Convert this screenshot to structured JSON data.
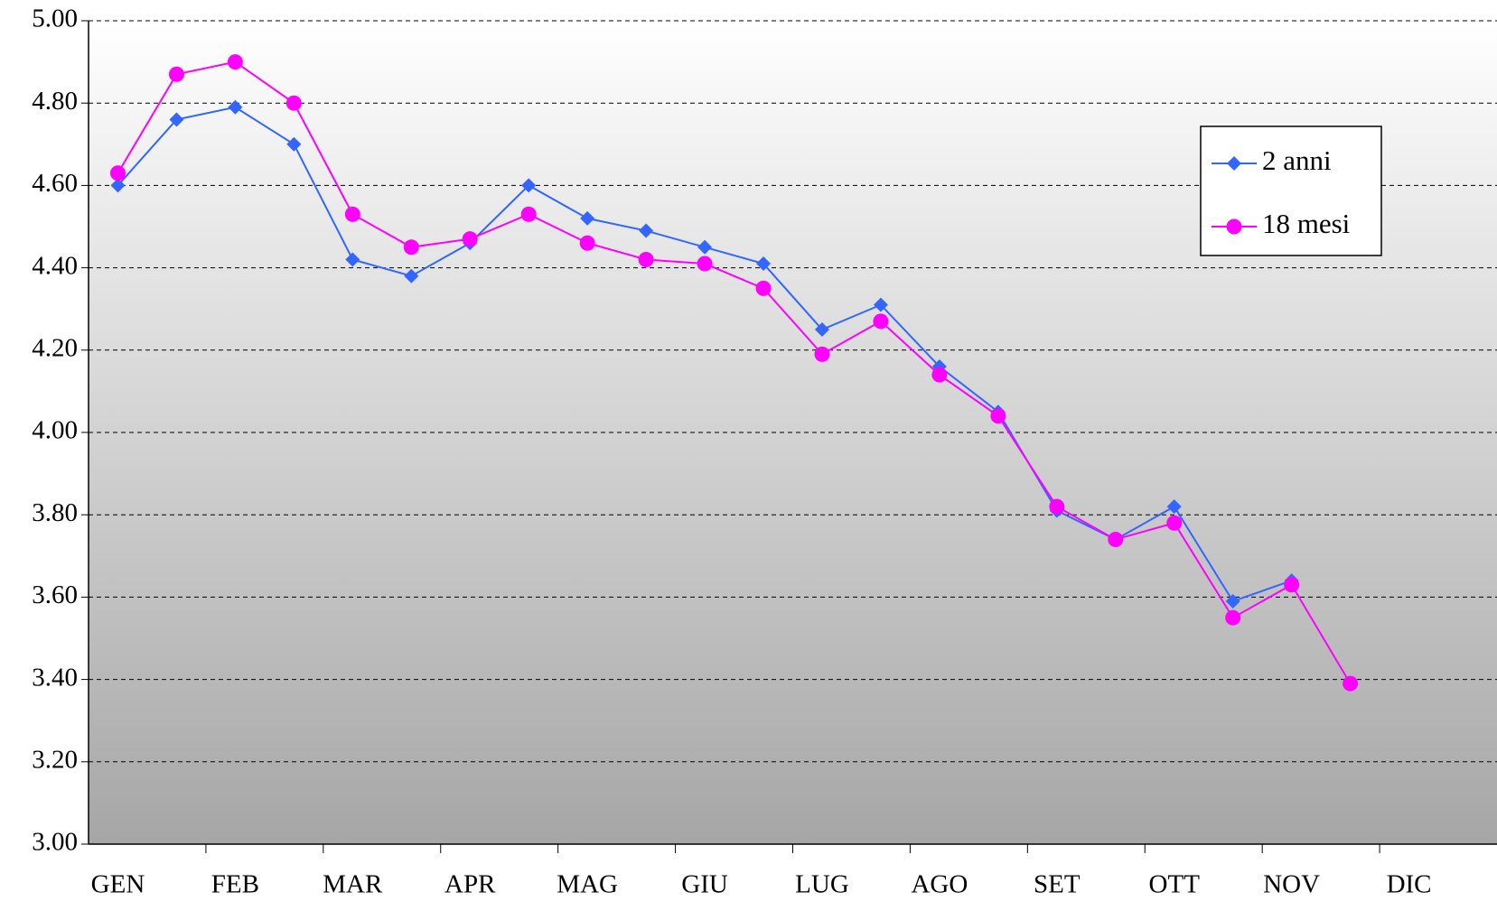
{
  "chart_data": {
    "type": "line",
    "categories": [
      "GEN",
      null,
      "FEB",
      null,
      "MAR",
      null,
      "APR",
      null,
      "MAG",
      null,
      "GIU",
      null,
      "LUG",
      null,
      "AGO",
      null,
      "SET",
      null,
      "OTT",
      null,
      "NOV",
      null,
      "DIC",
      null
    ],
    "series": [
      {
        "name": "2 anni",
        "color": "#3366ff",
        "marker": "diamond",
        "values": [
          4.6,
          4.76,
          4.79,
          4.7,
          4.42,
          4.38,
          4.46,
          4.6,
          4.52,
          4.49,
          4.45,
          4.41,
          4.25,
          4.31,
          4.16,
          4.05,
          3.81,
          3.74,
          3.82,
          3.59,
          3.64,
          null,
          null,
          null
        ]
      },
      {
        "name": "18 mesi",
        "color": "#ff00ff",
        "marker": "circle",
        "values": [
          4.63,
          4.87,
          4.9,
          4.8,
          4.53,
          4.45,
          4.47,
          4.53,
          4.46,
          4.42,
          4.41,
          4.35,
          4.19,
          4.27,
          4.14,
          4.04,
          3.82,
          3.74,
          3.78,
          3.55,
          3.63,
          3.39,
          null,
          null
        ]
      }
    ],
    "ylim": [
      3,
      5
    ],
    "yticks": [
      {
        "value": 3,
        "label": "3.00"
      },
      {
        "value": 3.2,
        "label": "3.20"
      },
      {
        "value": 3.4,
        "label": "3.40"
      },
      {
        "value": 3.6,
        "label": "3.60"
      },
      {
        "value": 3.8,
        "label": "3.80"
      },
      {
        "value": 4,
        "label": "4.00"
      },
      {
        "value": 4.2,
        "label": "4.20"
      },
      {
        "value": 4.4,
        "label": "4.40"
      },
      {
        "value": 4.6,
        "label": "4.60"
      },
      {
        "value": 4.8,
        "label": "4.80"
      },
      {
        "value": 5,
        "label": "5.00"
      }
    ],
    "grid": true,
    "legend": "upper right"
  }
}
